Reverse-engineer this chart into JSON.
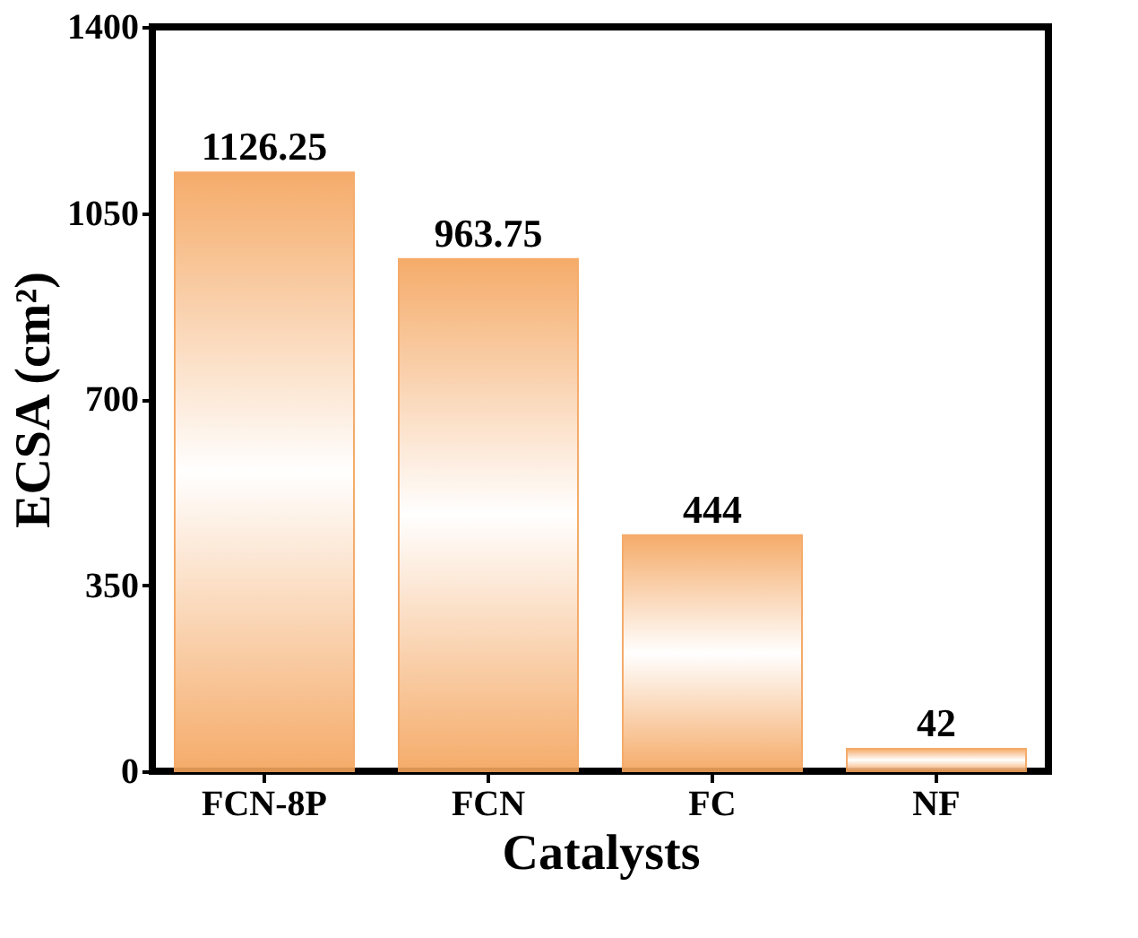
{
  "chart_data": {
    "type": "bar",
    "xlabel": "Catalysts",
    "ylabel": "ECSA (cm²)",
    "categories": [
      "FCN-8P",
      "FCN",
      "FC",
      "NF"
    ],
    "values": [
      1126.25,
      963.75,
      444,
      42
    ],
    "color": "#f5a35a",
    "ylim": [
      0,
      1400
    ],
    "yticks": [
      0,
      350,
      700,
      1050,
      1400
    ],
    "data_labels": true,
    "grid": false
  }
}
